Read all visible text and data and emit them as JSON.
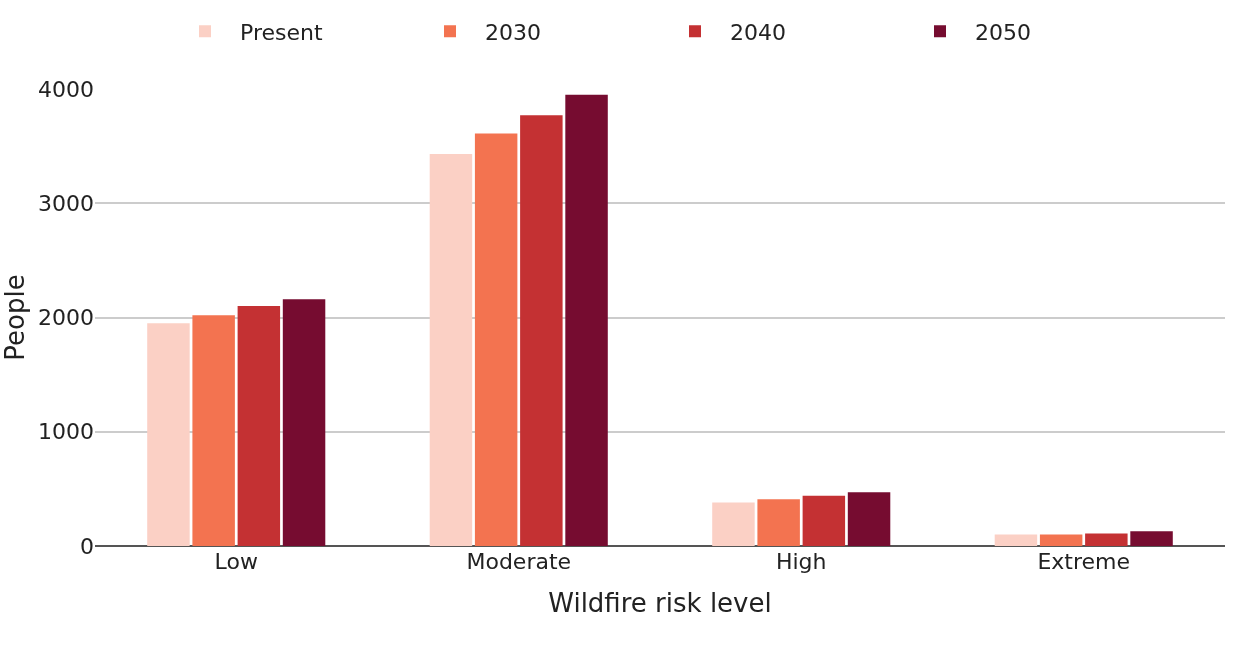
{
  "chart_data": {
    "type": "bar",
    "xlabel": "Wildfire risk level",
    "ylabel": "People",
    "categories": [
      "Low",
      "Moderate",
      "High",
      "Extreme"
    ],
    "series": [
      {
        "name": "Present",
        "color": "#fbd0c5",
        "values": [
          1950,
          3430,
          380,
          100
        ]
      },
      {
        "name": "2030",
        "color": "#f37350",
        "values": [
          2020,
          3610,
          410,
          100
        ]
      },
      {
        "name": "2040",
        "color": "#c43133",
        "values": [
          2100,
          3770,
          440,
          110
        ]
      },
      {
        "name": "2050",
        "color": "#760c30",
        "values": [
          2160,
          3950,
          470,
          130
        ]
      }
    ],
    "ylim": [
      0,
      4000
    ],
    "yticks": [
      0,
      1000,
      2000,
      3000,
      4000
    ],
    "grid": "y",
    "legend": "top"
  }
}
